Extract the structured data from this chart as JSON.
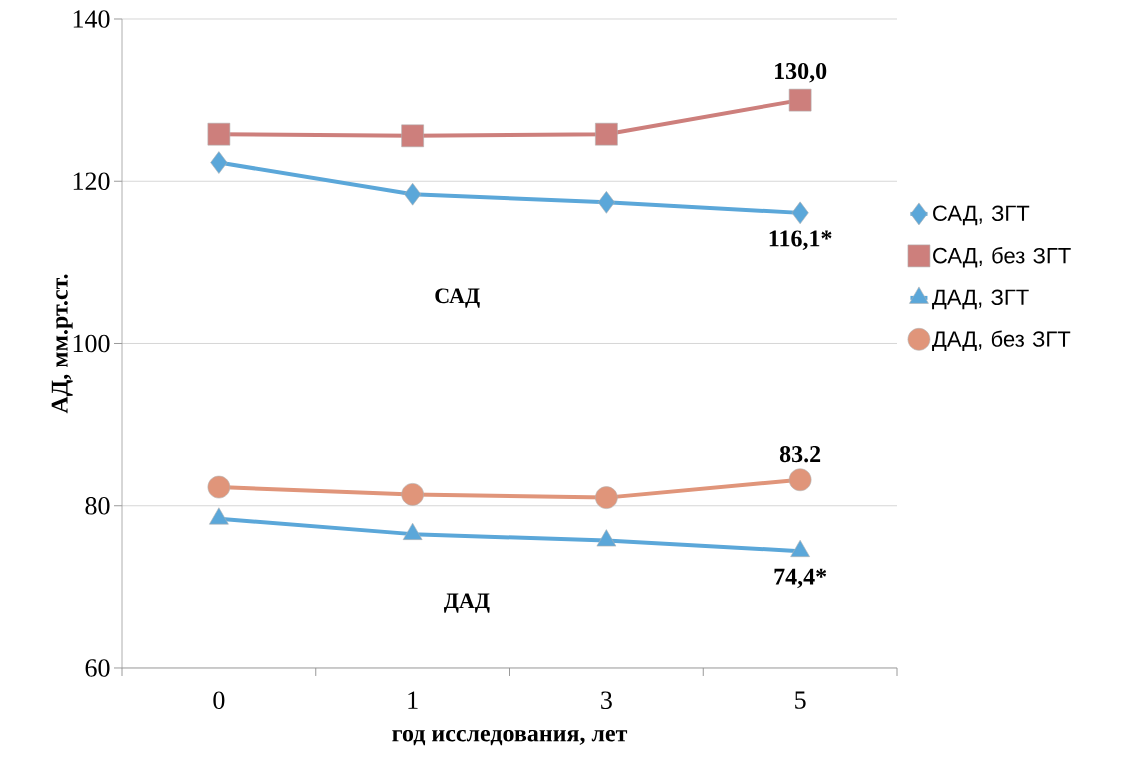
{
  "chart_data": {
    "type": "line",
    "xlabel": "год исследования, лет",
    "ylabel": "АД, мм.рт.ст.",
    "categories": [
      "0",
      "1",
      "3",
      "5"
    ],
    "series": [
      {
        "name": "САД, ЗГТ",
        "color": "#5ba7d9",
        "marker": "diamond",
        "values": [
          122.3,
          118.4,
          117.4,
          116.1
        ],
        "value_labels": [
          null,
          null,
          null,
          "116,1*"
        ]
      },
      {
        "name": "САД, без ЗГТ",
        "color": "#cd7f7c",
        "marker": "square",
        "values": [
          125.8,
          125.6,
          125.8,
          130.0
        ],
        "value_labels": [
          null,
          null,
          null,
          "130,0"
        ]
      },
      {
        "name": "ДАД, ЗГТ",
        "color": "#5ba7d9",
        "marker": "triangle",
        "values": [
          78.4,
          76.5,
          75.7,
          74.4
        ],
        "value_labels": [
          null,
          null,
          null,
          "74,4*"
        ]
      },
      {
        "name": "ДАД, без ЗГТ",
        "color": "#e0957a",
        "marker": "circle",
        "values": [
          82.3,
          81.4,
          81.0,
          83.2
        ],
        "value_labels": [
          null,
          null,
          null,
          "83.2"
        ]
      }
    ],
    "annotations": [
      "САД",
      "ДАД"
    ],
    "ylim": [
      60,
      140
    ],
    "yticks": [
      60,
      80,
      100,
      120,
      140
    ],
    "grid": "y",
    "legend": "right"
  }
}
